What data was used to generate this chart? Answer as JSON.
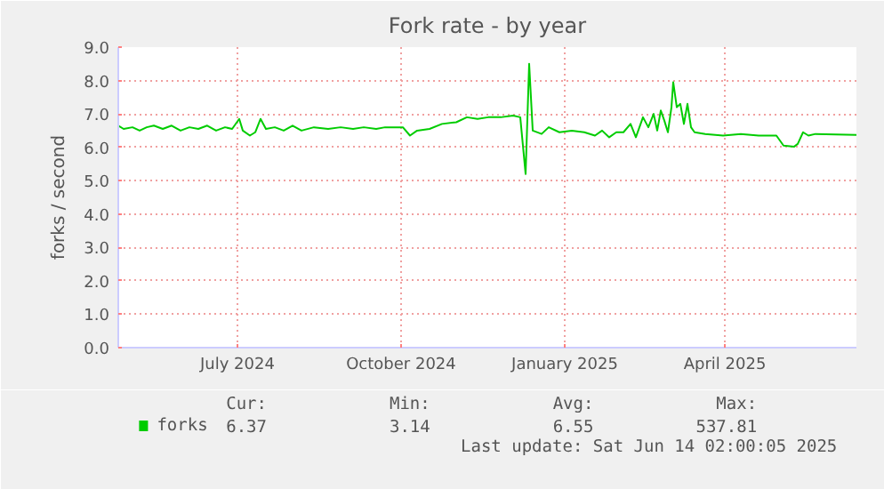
{
  "chart_data": {
    "type": "line",
    "title": "Fork rate - by year",
    "ylabel": "forks / second",
    "x": [
      "2024-04-25",
      "2024-04-28",
      "2024-05-03",
      "2024-05-07",
      "2024-05-11",
      "2024-05-15",
      "2024-05-20",
      "2024-05-25",
      "2024-05-30",
      "2024-06-04",
      "2024-06-09",
      "2024-06-14",
      "2024-06-19",
      "2024-06-24",
      "2024-06-28",
      "2024-07-02",
      "2024-07-04",
      "2024-07-08",
      "2024-07-11",
      "2024-07-14",
      "2024-07-17",
      "2024-07-22",
      "2024-07-27",
      "2024-08-01",
      "2024-08-06",
      "2024-08-13",
      "2024-08-21",
      "2024-08-28",
      "2024-09-04",
      "2024-09-10",
      "2024-09-17",
      "2024-09-22",
      "2024-10-02",
      "2024-10-06",
      "2024-10-10",
      "2024-10-17",
      "2024-10-24",
      "2024-11-01",
      "2024-11-07",
      "2024-11-13",
      "2024-11-19",
      "2024-11-26",
      "2024-12-03",
      "2024-12-07",
      "2024-12-10",
      "2024-12-12",
      "2024-12-14",
      "2024-12-19",
      "2024-12-23",
      "2024-12-29",
      "2025-01-05",
      "2025-01-12",
      "2025-01-18",
      "2025-01-22",
      "2025-01-26",
      "2025-01-30",
      "2025-02-03",
      "2025-02-07",
      "2025-02-10",
      "2025-02-14",
      "2025-02-17",
      "2025-02-20",
      "2025-02-22",
      "2025-02-24",
      "2025-02-26",
      "2025-02-28",
      "2025-03-02",
      "2025-03-03",
      "2025-03-05",
      "2025-03-07",
      "2025-03-09",
      "2025-03-11",
      "2025-03-13",
      "2025-03-15",
      "2025-03-21",
      "2025-03-31",
      "2025-04-10",
      "2025-04-20",
      "2025-04-30",
      "2025-05-04",
      "2025-05-10",
      "2025-05-12",
      "2025-05-15",
      "2025-05-18",
      "2025-05-22",
      "2025-06-14"
    ],
    "series": [
      {
        "name": "forks",
        "color": "#00cc00",
        "values": [
          6.65,
          6.55,
          6.6,
          6.5,
          6.6,
          6.65,
          6.55,
          6.65,
          6.5,
          6.6,
          6.55,
          6.65,
          6.5,
          6.6,
          6.55,
          6.85,
          6.5,
          6.35,
          6.45,
          6.85,
          6.55,
          6.6,
          6.5,
          6.65,
          6.5,
          6.6,
          6.55,
          6.6,
          6.55,
          6.6,
          6.55,
          6.6,
          6.6,
          6.35,
          6.5,
          6.55,
          6.7,
          6.75,
          6.9,
          6.85,
          6.9,
          6.9,
          6.95,
          6.9,
          5.2,
          8.5,
          6.5,
          6.4,
          6.6,
          6.45,
          6.5,
          6.45,
          6.35,
          6.5,
          6.3,
          6.45,
          6.45,
          6.7,
          6.3,
          6.9,
          6.6,
          7.0,
          6.5,
          7.1,
          6.8,
          6.45,
          7.2,
          7.95,
          7.2,
          7.3,
          6.7,
          7.3,
          6.6,
          6.45,
          6.4,
          6.35,
          6.4,
          6.35,
          6.35,
          6.05,
          6.02,
          6.1,
          6.45,
          6.35,
          6.4,
          6.37
        ]
      }
    ],
    "xlim": [
      "2024-04-25",
      "2025-06-14"
    ],
    "xticks": [
      {
        "value": "2024-07-01",
        "label": "July 2024"
      },
      {
        "value": "2024-10-01",
        "label": "October 2024"
      },
      {
        "value": "2025-01-01",
        "label": "January 2025"
      },
      {
        "value": "2025-04-01",
        "label": "April 2025"
      }
    ],
    "ylim": [
      0,
      9
    ],
    "yticks": [
      {
        "value": 0,
        "label": "0.0"
      },
      {
        "value": 1,
        "label": "1.0"
      },
      {
        "value": 2,
        "label": "2.0"
      },
      {
        "value": 3,
        "label": "3.0"
      },
      {
        "value": 4,
        "label": "4.0"
      },
      {
        "value": 5,
        "label": "5.0"
      },
      {
        "value": 6,
        "label": "6.0"
      },
      {
        "value": 7,
        "label": "7.0"
      },
      {
        "value": 8,
        "label": "8.0"
      },
      {
        "value": 9,
        "label": "9.0"
      }
    ],
    "grid": true,
    "marker": "none",
    "line_style": "solid",
    "annotations": [
      "Cur:",
      "Min:",
      "Avg:",
      "Max:",
      "6.37",
      "3.14",
      "6.55",
      "537.81",
      "Last update: Sat Jun 14 02:00:05 2025"
    ]
  }
}
